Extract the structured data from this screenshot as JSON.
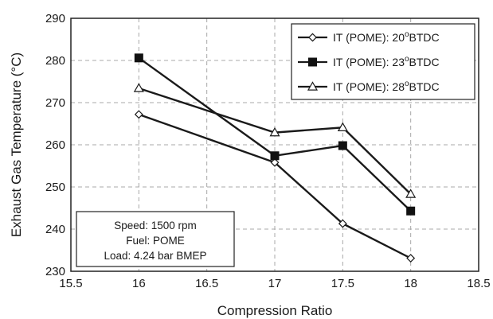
{
  "chart_data": {
    "type": "line",
    "xlabel": "Compression Ratio",
    "ylabel": "Exhaust Gas Temperature (°C)",
    "xlim": [
      15.5,
      18.5
    ],
    "ylim": [
      230,
      290
    ],
    "xticks": [
      "15.5",
      "16",
      "16.5",
      "17",
      "17.5",
      "18",
      "18.5"
    ],
    "yticks": [
      "230",
      "240",
      "250",
      "260",
      "270",
      "280",
      "290"
    ],
    "grid": "dashed",
    "legend_position": "top-right",
    "series": [
      {
        "name": "IT (POME): 20",
        "sup": "o",
        "suffix": "BTDC",
        "marker": "diamond-open",
        "x": [
          16,
          17,
          17.5,
          18
        ],
        "y": [
          267.2,
          255.8,
          241.3,
          233.1
        ]
      },
      {
        "name": "IT (POME): 23",
        "sup": "o",
        "suffix": "BTDC",
        "marker": "square-filled",
        "x": [
          16,
          17,
          17.5,
          18
        ],
        "y": [
          280.6,
          257.4,
          259.8,
          244.3
        ]
      },
      {
        "name": "IT (POME): 28",
        "sup": "o",
        "suffix": "BTDC",
        "marker": "triangle-open",
        "x": [
          16,
          17,
          17.5,
          18
        ],
        "y": [
          273.4,
          262.9,
          264.1,
          248.3
        ]
      }
    ],
    "annotation": [
      "Speed: 1500 rpm",
      "Fuel: POME",
      "Load: 4.24 bar BMEP"
    ]
  }
}
